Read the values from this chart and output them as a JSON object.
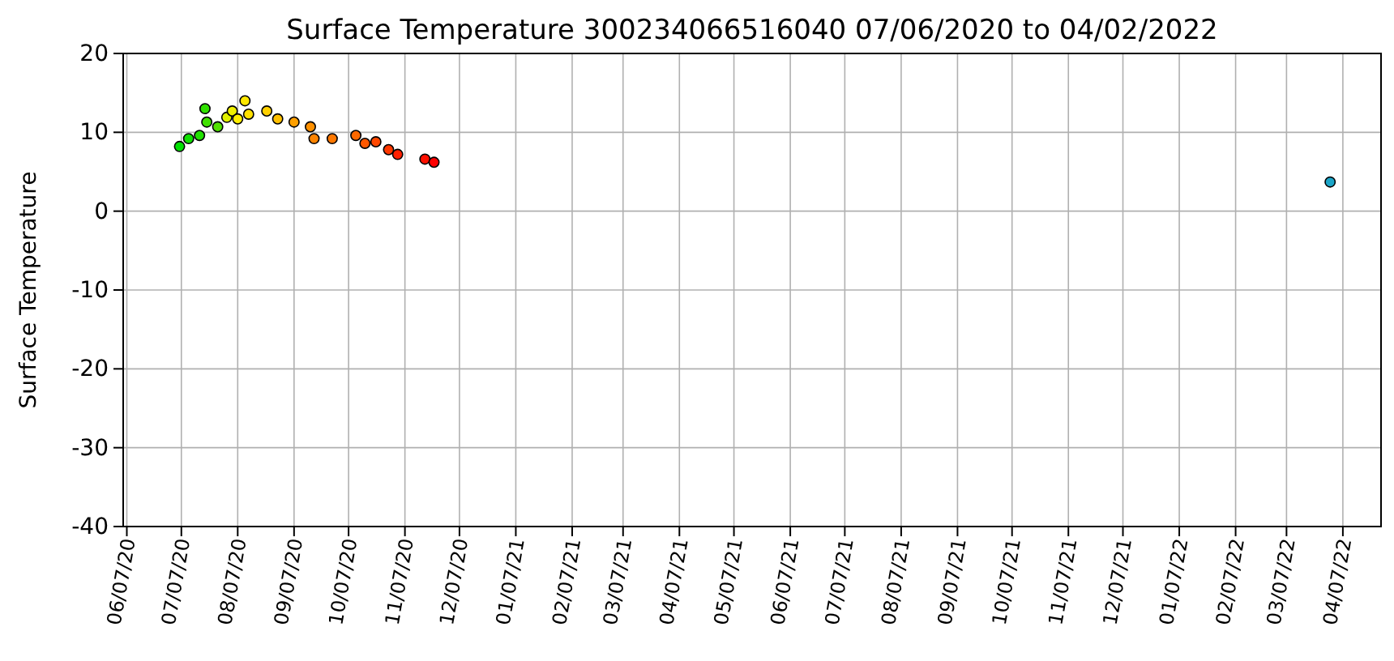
{
  "chart_data": {
    "type": "scatter",
    "title": "Surface Temperature 300234066516040  07/06/2020 to 04/02/2022",
    "ylabel": "Surface Temperature",
    "x": [
      "2020-07-06",
      "2020-07-11",
      "2020-07-17",
      "2020-07-20",
      "2020-07-21",
      "2020-07-27",
      "2020-08-01",
      "2020-08-04",
      "2020-08-07",
      "2020-08-11",
      "2020-08-13",
      "2020-08-23",
      "2020-08-29",
      "2020-09-07",
      "2020-09-16",
      "2020-09-18",
      "2020-09-28",
      "2020-10-11",
      "2020-10-16",
      "2020-10-22",
      "2020-10-29",
      "2020-11-03",
      "2020-11-18",
      "2020-11-23",
      "2022-03-31"
    ],
    "values": [
      8.2,
      9.2,
      9.6,
      13,
      11.3,
      10.7,
      11.9,
      12.7,
      11.7,
      14,
      12.3,
      12.7,
      11.7,
      11.3,
      10.7,
      9.2,
      9.2,
      9.6,
      8.6,
      8.8,
      7.8,
      7.2,
      6.6,
      6.2,
      3.7
    ],
    "colors": [
      "#00e000",
      "#10e000",
      "#20e000",
      "#30e000",
      "#40e000",
      "#50e000",
      "#e0f000",
      "#f0f000",
      "#ffee00",
      "#ffe800",
      "#ffe000",
      "#ffd000",
      "#ffc000",
      "#ffa000",
      "#ff9000",
      "#ff8400",
      "#ff7800",
      "#ff6800",
      "#ff5800",
      "#ff4800",
      "#ff3800",
      "#ff2000",
      "#ff1000",
      "#ff0000",
      "#1ca5c8"
    ],
    "xlim": [
      "2020-06-05",
      "2022-04-28"
    ],
    "xticks": [
      {
        "value": "2020-06-07",
        "label": "06/07/20"
      },
      {
        "value": "2020-07-07",
        "label": "07/07/20"
      },
      {
        "value": "2020-08-07",
        "label": "08/07/20"
      },
      {
        "value": "2020-09-07",
        "label": "09/07/20"
      },
      {
        "value": "2020-10-07",
        "label": "10/07/20"
      },
      {
        "value": "2020-11-07",
        "label": "11/07/20"
      },
      {
        "value": "2020-12-07",
        "label": "12/07/20"
      },
      {
        "value": "2021-01-07",
        "label": "01/07/21"
      },
      {
        "value": "2021-02-07",
        "label": "02/07/21"
      },
      {
        "value": "2021-03-07",
        "label": "03/07/21"
      },
      {
        "value": "2021-04-07",
        "label": "04/07/21"
      },
      {
        "value": "2021-05-07",
        "label": "05/07/21"
      },
      {
        "value": "2021-06-07",
        "label": "06/07/21"
      },
      {
        "value": "2021-07-07",
        "label": "07/07/21"
      },
      {
        "value": "2021-08-07",
        "label": "08/07/21"
      },
      {
        "value": "2021-09-07",
        "label": "09/07/21"
      },
      {
        "value": "2021-10-07",
        "label": "10/07/21"
      },
      {
        "value": "2021-11-07",
        "label": "11/07/21"
      },
      {
        "value": "2021-12-07",
        "label": "12/07/21"
      },
      {
        "value": "2022-01-07",
        "label": "01/07/22"
      },
      {
        "value": "2022-02-07",
        "label": "02/07/22"
      },
      {
        "value": "2022-03-07",
        "label": "03/07/22"
      },
      {
        "value": "2022-04-07",
        "label": "04/07/22"
      }
    ],
    "ylim": [
      -40,
      20
    ],
    "yticks": [
      -40,
      -30,
      -20,
      -10,
      0,
      10,
      20
    ],
    "grid": true,
    "marker": "circle"
  }
}
